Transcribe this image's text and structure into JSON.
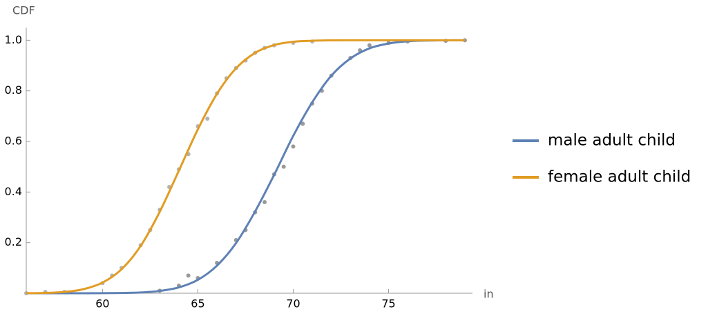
{
  "chart_data": {
    "type": "line",
    "x_label": "in",
    "y_label": "CDF",
    "x": [
      56,
      57,
      58,
      59,
      60,
      61,
      62,
      63,
      64,
      65,
      66,
      67,
      68,
      69,
      70,
      71,
      72,
      73,
      74,
      75,
      76,
      77,
      78,
      79
    ],
    "series": [
      {
        "name": "male adult child",
        "color": "#5e81b5",
        "values": [
          0,
          0,
          0,
          0,
          0.0002,
          0.001,
          0.003,
          0.009,
          0.023,
          0.053,
          0.109,
          0.198,
          0.323,
          0.468,
          0.622,
          0.755,
          0.86,
          0.928,
          0.968,
          0.987,
          0.996,
          0.9987,
          0.9997,
          1
        ]
      },
      {
        "name": "female adult child",
        "color": "#e19c24",
        "values": [
          0.0003,
          0.0014,
          0.005,
          0.016,
          0.042,
          0.095,
          0.187,
          0.322,
          0.484,
          0.648,
          0.788,
          0.889,
          0.95,
          0.981,
          0.994,
          0.998,
          0.9995,
          1,
          1,
          1,
          1,
          1,
          1,
          1
        ]
      }
    ],
    "points": [
      {
        "color": "#777777",
        "x": [
          63,
          64,
          64.5,
          65,
          66,
          67,
          67.5,
          68,
          68.5,
          69,
          69.5,
          70,
          70.5,
          71,
          71.5,
          72,
          73,
          73.5,
          74,
          75,
          76,
          78,
          79
        ],
        "values": [
          0.01,
          0.03,
          0.07,
          0.06,
          0.12,
          0.21,
          0.25,
          0.32,
          0.36,
          0.47,
          0.5,
          0.58,
          0.67,
          0.75,
          0.8,
          0.86,
          0.93,
          0.96,
          0.98,
          0.99,
          0.995,
          0.998,
          1
        ]
      },
      {
        "color": "#999999",
        "x": [
          56,
          57,
          58,
          60,
          60.5,
          61,
          62,
          62.5,
          63,
          63.5,
          64,
          64.5,
          65,
          65.5,
          66,
          66.5,
          67,
          67.5,
          68,
          68.5,
          69,
          70,
          71
        ],
        "values": [
          0,
          0.005,
          0.005,
          0.04,
          0.07,
          0.1,
          0.19,
          0.25,
          0.33,
          0.42,
          0.49,
          0.55,
          0.66,
          0.69,
          0.79,
          0.85,
          0.89,
          0.92,
          0.95,
          0.97,
          0.98,
          0.99,
          0.995
        ]
      }
    ],
    "xlim": [
      56,
      79.4
    ],
    "ylim": [
      0,
      1.05
    ],
    "xticks": [
      60,
      65,
      70,
      75
    ],
    "yticks": [
      0.2,
      0.4,
      0.6,
      0.8,
      {
        "value": 1,
        "label": "1.0"
      }
    ]
  }
}
